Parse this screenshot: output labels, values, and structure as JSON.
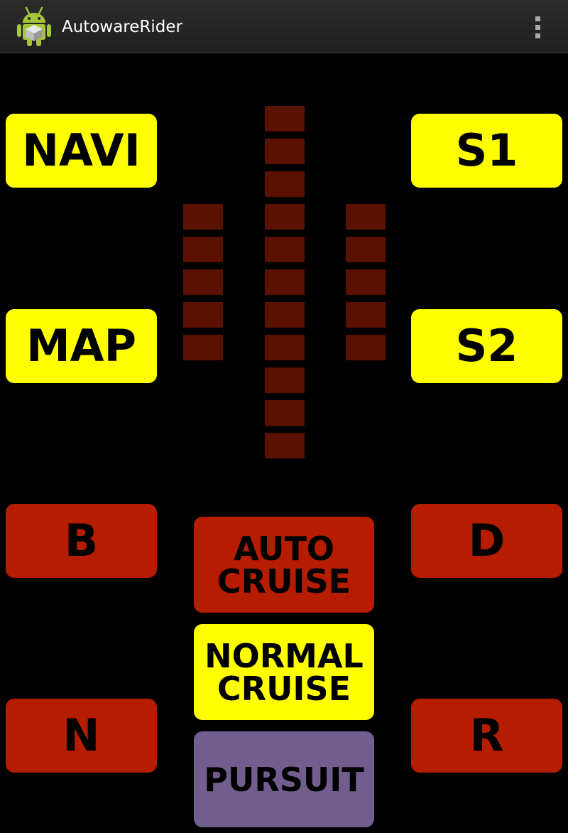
{
  "app": {
    "title": "AutowareRider",
    "icon": "android-robot-icon",
    "overflow_icon": "overflow-menu-icon"
  },
  "colors": {
    "yellow": "#ffff00",
    "red": "#b61c00",
    "purple": "#725e8e",
    "indicator_off": "#5a1100",
    "background": "#000000",
    "action_bar": "#262626"
  },
  "buttons": {
    "navi": "NAVI",
    "map": "MAP",
    "s1": "S1",
    "s2": "S2",
    "b": "B",
    "d": "D",
    "n": "N",
    "r": "R",
    "auto_cruise": "AUTO\nCRUISE",
    "normal_cruise": "NORMAL\nCRUISE",
    "pursuit": "PURSUIT"
  },
  "indicators": {
    "left_column_segments": 5,
    "center_column_segments": 11,
    "right_column_segments": 5,
    "lit_segments": 0
  }
}
